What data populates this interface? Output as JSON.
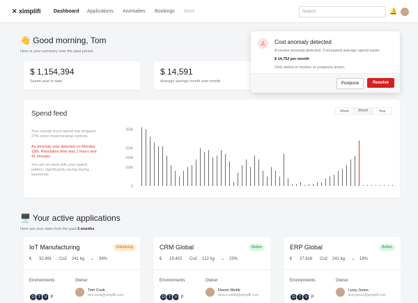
{
  "nav": {
    "logo": "ximplifi",
    "items": [
      "Dashboard",
      "Applications",
      "Anomalies",
      "Bookings",
      "More"
    ],
    "search": "Search"
  },
  "greeting": {
    "title": "👋 Good morning, Tom",
    "subtitle": "Here is your summary over the past period."
  },
  "stats": [
    {
      "value": "$ 1,154,394",
      "label": "Saved year to date"
    },
    {
      "value": "$ 14,591",
      "label": "Average savings month over month"
    }
  ],
  "anomaly": {
    "title": "Cost anomaly detected",
    "text": "A severe anomaly detected. Forecasted average spend waste",
    "amount": "$ 14,752 per month",
    "hint": "Click below to resolve or postpone action.",
    "buttons": [
      "Postpone",
      "Resolve"
    ]
  },
  "spend_feed": {
    "title": "Spend feed",
    "tabs": [
      "Week",
      "Month",
      "Year"
    ],
    "notes": [
      "Your overall cloud spend has dropped 27% since implementing controls.",
      "An anomaly was detected on Monday 13th. Resolution time was 2 hours and 41 minutes",
      "You are on track with your spend pattern, significantly saving during weekends"
    ],
    "chart_data": {
      "type": "bar",
      "ylim": [
        0,
        320000
      ],
      "yticks": [
        {
          "value": 300000,
          "label": "300k"
        },
        {
          "value": 200000,
          "label": "200k"
        },
        {
          "value": 150000,
          "label": "150k"
        },
        {
          "value": 100000,
          "label": "100k"
        },
        0
      ],
      "values": [
        310000,
        300000,
        260000,
        230000,
        210000,
        210000,
        160000,
        110000,
        80000,
        50000,
        80000,
        100000,
        110000,
        140000,
        200000,
        180000,
        190000,
        150000,
        160000,
        190000,
        170000,
        130000,
        20000,
        70000,
        110000,
        140000,
        100000,
        160000,
        140000,
        80000,
        50000,
        100000,
        80000,
        50000,
        170000,
        40000,
        10000,
        10000,
        20000,
        5000,
        10000,
        10000,
        20000,
        20000,
        40000,
        50000,
        60000,
        80000,
        90000,
        110000,
        140000,
        160000,
        240000,
        5000,
        5000,
        5000,
        5000,
        5000,
        5000,
        5000,
        5000
      ],
      "color": "#6b6b6b",
      "highlight_color": "#e03131",
      "highlight_index": 52
    }
  },
  "applications": {
    "title": "🖥️ Your active applications",
    "subtitle": "Here are your stats from the past ",
    "subtitle_bold": "3 months",
    "cards": [
      {
        "name": "IoT Manufacturing",
        "status": "Initializing",
        "cost": "32,491",
        "co2": "241 kg",
        "change": "39%",
        "owner": "Tom Cook",
        "email": "tom.cook@ximplifi.com"
      },
      {
        "name": "CRM Global",
        "status": "Active",
        "cost": "19,402",
        "co2": "122 kg",
        "change": "23%",
        "owner": "Devon Webb",
        "email": "devon.webb@ximplifi.com"
      },
      {
        "name": "ERP Global",
        "status": "Active",
        "cost": "27,616",
        "co2": "241 kg",
        "change": "18%",
        "owner": "Lizzy Jones",
        "email": "lizzy.jones@ximplifi.com"
      }
    ],
    "labels": {
      "currency": "€",
      "co2": "Co2",
      "environments": "Environments",
      "owner": "Owner"
    },
    "environments": [
      "D",
      "T",
      "V",
      "P"
    ]
  }
}
